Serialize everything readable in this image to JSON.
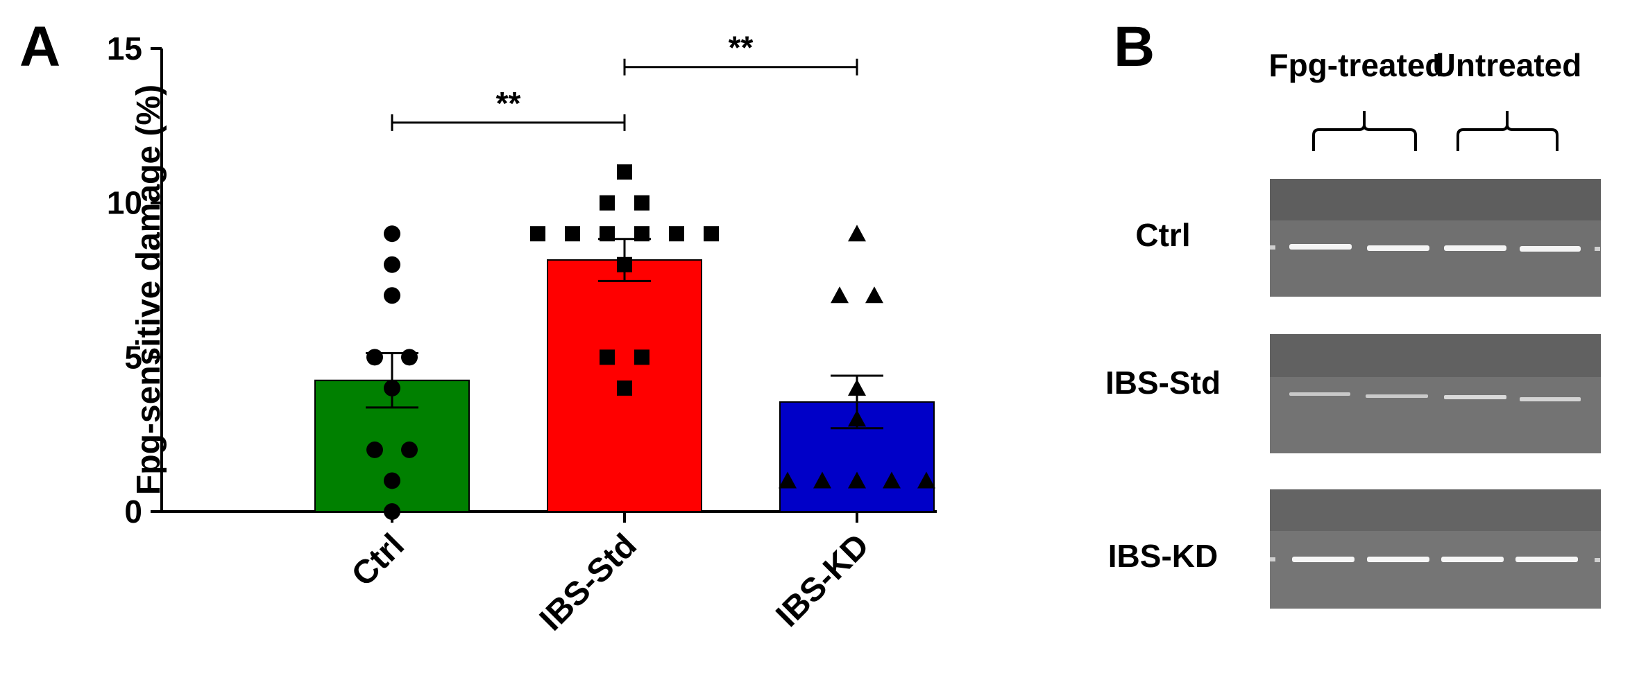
{
  "panel_a": {
    "label": "A"
  },
  "panel_b": {
    "label": "B",
    "headers": [
      "Fpg-treated",
      "Untreated"
    ],
    "row_labels": [
      "Ctrl",
      "IBS-Std",
      "IBS-KD"
    ]
  },
  "chart_data": {
    "type": "bar",
    "categories": [
      "Ctrl",
      "IBS-Std",
      "IBS-KD"
    ],
    "values": [
      4.25,
      8.15,
      3.55
    ],
    "errors": [
      0.88,
      0.68,
      0.85
    ],
    "ylabel": "Fpg-sensitive damage (%)",
    "ylim": [
      0,
      15
    ],
    "yticks": [
      0,
      5,
      10,
      15
    ],
    "colors": [
      "#008000",
      "#ff0000",
      "#0000c8"
    ],
    "markers": [
      "circle",
      "square",
      "triangle"
    ],
    "points": [
      [
        9,
        8,
        7,
        5,
        5,
        4,
        2,
        2,
        1,
        0
      ],
      [
        11,
        10,
        10,
        9,
        9,
        9,
        9,
        9,
        9,
        8,
        5,
        5,
        4
      ],
      [
        9,
        7,
        7,
        4,
        3,
        1,
        1,
        1,
        1,
        1
      ]
    ],
    "significance": [
      {
        "from": "Ctrl",
        "to": "IBS-Std",
        "y": 12.6,
        "label": "**"
      },
      {
        "from": "IBS-Std",
        "to": "IBS-KD",
        "y": 14.4,
        "label": "**"
      }
    ],
    "grid": false,
    "legend": "none"
  }
}
